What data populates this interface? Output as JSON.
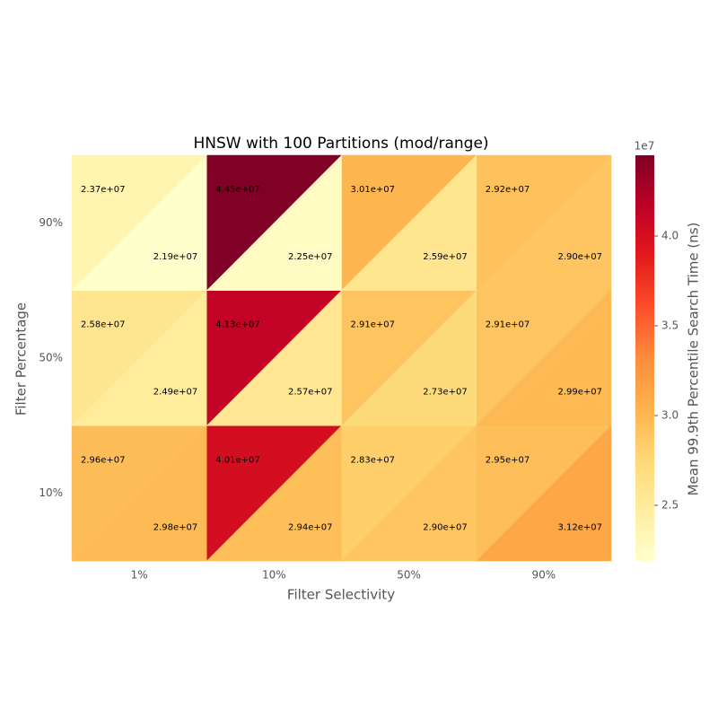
{
  "chart_data": {
    "type": "heatmap",
    "title": "HNSW with 100 Partitions (mod/range)",
    "x_label": "Filter Selectivity",
    "y_label": "Filter Percentage",
    "x_categories": [
      "1%",
      "10%",
      "50%",
      "90%"
    ],
    "y_categories": [
      "90%",
      "50%",
      "10%"
    ],
    "series": [
      {
        "values": [
          [
            23700000,
            44500000,
            30100000,
            29200000
          ],
          [
            25800000,
            41300000,
            29100000,
            29100000
          ],
          [
            29600000,
            40100000,
            28300000,
            29500000
          ]
        ],
        "value_labels": [
          [
            "2.37e+07",
            "4.45e+07",
            "3.01e+07",
            "2.92e+07"
          ],
          [
            "2.58e+07",
            "4.13e+07",
            "2.91e+07",
            "2.91e+07"
          ],
          [
            "2.96e+07",
            "4.01e+07",
            "2.83e+07",
            "2.95e+07"
          ]
        ]
      },
      {
        "values": [
          [
            21900000,
            22500000,
            25900000,
            29000000
          ],
          [
            24900000,
            25700000,
            27300000,
            29900000
          ],
          [
            29800000,
            29400000,
            29000000,
            31200000
          ]
        ],
        "value_labels": [
          [
            "2.19e+07",
            "2.25e+07",
            "2.59e+07",
            "2.90e+07"
          ],
          [
            "2.49e+07",
            "2.57e+07",
            "2.73e+07",
            "2.99e+07"
          ],
          [
            "2.98e+07",
            "2.94e+07",
            "2.90e+07",
            "3.12e+07"
          ]
        ]
      }
    ],
    "colorbar": {
      "label": "Mean 99.9th Percentile Search Time (ns)",
      "offset_label": "1e7",
      "lim": [
        21900000,
        44500000
      ],
      "ticks": [
        {
          "value": 25000000,
          "label": "2.5"
        },
        {
          "value": 30000000,
          "label": "3.0"
        },
        {
          "value": 35000000,
          "label": "3.5"
        },
        {
          "value": 40000000,
          "label": "4.0"
        }
      ],
      "colormap": [
        "#ffffcc",
        "#ffeda0",
        "#fed976",
        "#feb24c",
        "#fd8d3c",
        "#fc4e2a",
        "#e31a1c",
        "#bd0026",
        "#800026"
      ]
    }
  }
}
